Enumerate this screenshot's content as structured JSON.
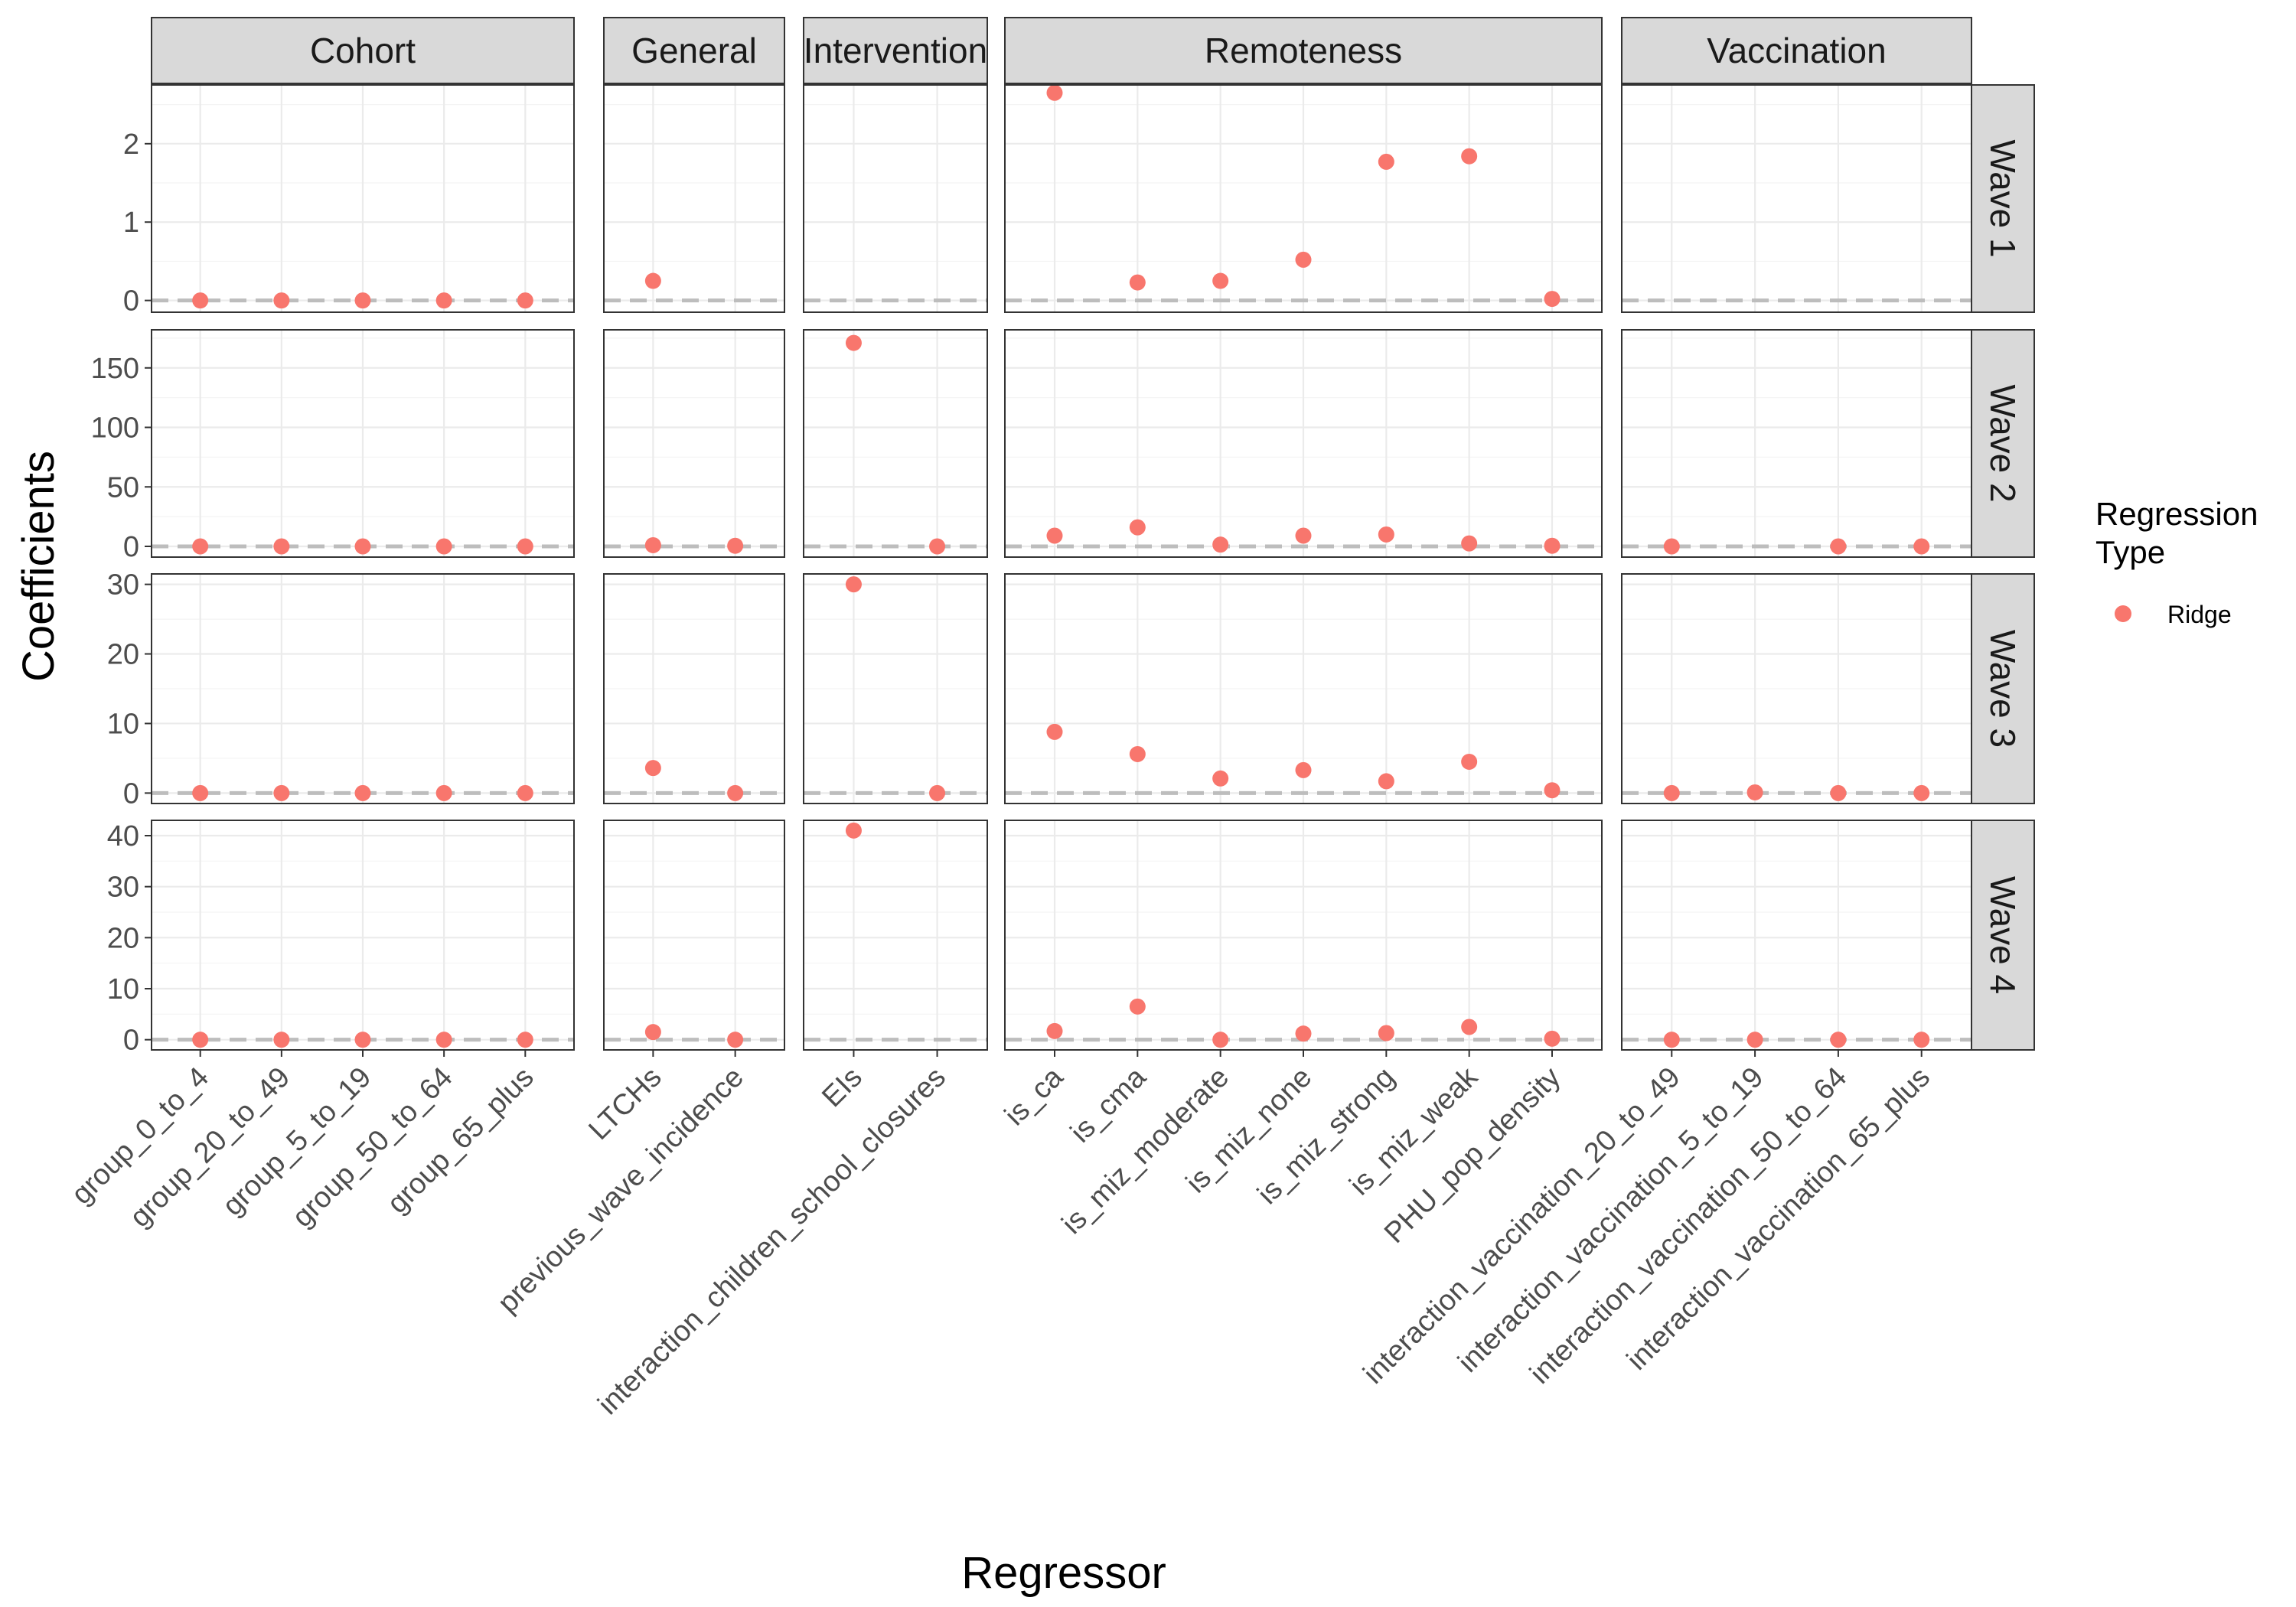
{
  "chart_data": {
    "type": "scatter",
    "xlabel": "Regressor",
    "ylabel": "Coefficients",
    "legend": {
      "title_lines": [
        "Regression",
        "Type"
      ],
      "entries": [
        {
          "name": "Ridge",
          "color": "#F8766D"
        }
      ],
      "placement": "right"
    },
    "reference_line": {
      "y": 0,
      "style": "dashed",
      "color": "#BDBDBD"
    },
    "grid": true,
    "facet_columns": [
      {
        "name": "Cohort",
        "regressors": [
          "group_0_to_4",
          "group_20_to_49",
          "group_5_to_19",
          "group_50_to_64",
          "group_65_plus"
        ]
      },
      {
        "name": "General",
        "regressors": [
          "LTCHs",
          "previous_wave_incidence"
        ]
      },
      {
        "name": "Intervention",
        "regressors": [
          "EIs",
          "interaction_children_school_closures"
        ]
      },
      {
        "name": "Remoteness",
        "regressors": [
          "is_ca",
          "is_cma",
          "is_miz_moderate",
          "is_miz_none",
          "is_miz_strong",
          "is_miz_weak",
          "PHU_pop_density"
        ]
      },
      {
        "name": "Vaccination",
        "regressors": [
          "interaction_vaccination_20_to_49",
          "interaction_vaccination_5_to_19",
          "interaction_vaccination_50_to_64",
          "interaction_vaccination_65_plus"
        ]
      }
    ],
    "facet_rows": [
      {
        "name": "Wave 1",
        "ylim": [
          -0.15,
          2.75
        ],
        "yticks": [
          0,
          1,
          2
        ]
      },
      {
        "name": "Wave 2",
        "ylim": [
          -9,
          182
        ],
        "yticks": [
          0,
          50,
          100,
          150
        ]
      },
      {
        "name": "Wave 3",
        "ylim": [
          -1.5,
          31.5
        ],
        "yticks": [
          0,
          10,
          20,
          30
        ]
      },
      {
        "name": "Wave 4",
        "ylim": [
          -2,
          43
        ],
        "yticks": [
          0,
          10,
          20,
          30,
          40
        ]
      }
    ],
    "series": [
      {
        "name": "Ridge",
        "color": "#F8766D",
        "points": [
          {
            "wave": "Wave 1",
            "regressor": "group_0_to_4",
            "y": 0
          },
          {
            "wave": "Wave 1",
            "regressor": "group_20_to_49",
            "y": 0
          },
          {
            "wave": "Wave 1",
            "regressor": "group_5_to_19",
            "y": 0
          },
          {
            "wave": "Wave 1",
            "regressor": "group_50_to_64",
            "y": 0
          },
          {
            "wave": "Wave 1",
            "regressor": "group_65_plus",
            "y": 0
          },
          {
            "wave": "Wave 1",
            "regressor": "LTCHs",
            "y": 0.25
          },
          {
            "wave": "Wave 1",
            "regressor": "is_ca",
            "y": 2.65
          },
          {
            "wave": "Wave 1",
            "regressor": "is_cma",
            "y": 0.23
          },
          {
            "wave": "Wave 1",
            "regressor": "is_miz_moderate",
            "y": 0.25
          },
          {
            "wave": "Wave 1",
            "regressor": "is_miz_none",
            "y": 0.52
          },
          {
            "wave": "Wave 1",
            "regressor": "is_miz_strong",
            "y": 1.77
          },
          {
            "wave": "Wave 1",
            "regressor": "is_miz_weak",
            "y": 1.84
          },
          {
            "wave": "Wave 1",
            "regressor": "PHU_pop_density",
            "y": 0.02
          },
          {
            "wave": "Wave 2",
            "regressor": "group_0_to_4",
            "y": 0
          },
          {
            "wave": "Wave 2",
            "regressor": "group_20_to_49",
            "y": 0
          },
          {
            "wave": "Wave 2",
            "regressor": "group_5_to_19",
            "y": 0
          },
          {
            "wave": "Wave 2",
            "regressor": "group_50_to_64",
            "y": 0
          },
          {
            "wave": "Wave 2",
            "regressor": "group_65_plus",
            "y": 0
          },
          {
            "wave": "Wave 2",
            "regressor": "LTCHs",
            "y": 1
          },
          {
            "wave": "Wave 2",
            "regressor": "previous_wave_incidence",
            "y": 0.5
          },
          {
            "wave": "Wave 2",
            "regressor": "EIs",
            "y": 171
          },
          {
            "wave": "Wave 2",
            "regressor": "interaction_children_school_closures",
            "y": 0
          },
          {
            "wave": "Wave 2",
            "regressor": "is_ca",
            "y": 9
          },
          {
            "wave": "Wave 2",
            "regressor": "is_cma",
            "y": 16
          },
          {
            "wave": "Wave 2",
            "regressor": "is_miz_moderate",
            "y": 1.5
          },
          {
            "wave": "Wave 2",
            "regressor": "is_miz_none",
            "y": 9
          },
          {
            "wave": "Wave 2",
            "regressor": "is_miz_strong",
            "y": 10
          },
          {
            "wave": "Wave 2",
            "regressor": "is_miz_weak",
            "y": 2.5
          },
          {
            "wave": "Wave 2",
            "regressor": "PHU_pop_density",
            "y": 0.5
          },
          {
            "wave": "Wave 2",
            "regressor": "interaction_vaccination_20_to_49",
            "y": 0
          },
          {
            "wave": "Wave 2",
            "regressor": "interaction_vaccination_50_to_64",
            "y": 0
          },
          {
            "wave": "Wave 2",
            "regressor": "interaction_vaccination_65_plus",
            "y": 0
          },
          {
            "wave": "Wave 3",
            "regressor": "group_0_to_4",
            "y": 0
          },
          {
            "wave": "Wave 3",
            "regressor": "group_20_to_49",
            "y": 0
          },
          {
            "wave": "Wave 3",
            "regressor": "group_5_to_19",
            "y": 0
          },
          {
            "wave": "Wave 3",
            "regressor": "group_50_to_64",
            "y": 0
          },
          {
            "wave": "Wave 3",
            "regressor": "group_65_plus",
            "y": 0
          },
          {
            "wave": "Wave 3",
            "regressor": "LTCHs",
            "y": 3.6
          },
          {
            "wave": "Wave 3",
            "regressor": "previous_wave_incidence",
            "y": 0
          },
          {
            "wave": "Wave 3",
            "regressor": "EIs",
            "y": 30
          },
          {
            "wave": "Wave 3",
            "regressor": "interaction_children_school_closures",
            "y": 0
          },
          {
            "wave": "Wave 3",
            "regressor": "is_ca",
            "y": 8.8
          },
          {
            "wave": "Wave 3",
            "regressor": "is_cma",
            "y": 5.6
          },
          {
            "wave": "Wave 3",
            "regressor": "is_miz_moderate",
            "y": 2.1
          },
          {
            "wave": "Wave 3",
            "regressor": "is_miz_none",
            "y": 3.3
          },
          {
            "wave": "Wave 3",
            "regressor": "is_miz_strong",
            "y": 1.7
          },
          {
            "wave": "Wave 3",
            "regressor": "is_miz_weak",
            "y": 4.5
          },
          {
            "wave": "Wave 3",
            "regressor": "PHU_pop_density",
            "y": 0.4
          },
          {
            "wave": "Wave 3",
            "regressor": "interaction_vaccination_20_to_49",
            "y": 0
          },
          {
            "wave": "Wave 3",
            "regressor": "interaction_vaccination_5_to_19",
            "y": 0.1
          },
          {
            "wave": "Wave 3",
            "regressor": "interaction_vaccination_50_to_64",
            "y": 0
          },
          {
            "wave": "Wave 3",
            "regressor": "interaction_vaccination_65_plus",
            "y": 0
          },
          {
            "wave": "Wave 4",
            "regressor": "group_0_to_4",
            "y": 0
          },
          {
            "wave": "Wave 4",
            "regressor": "group_20_to_49",
            "y": 0
          },
          {
            "wave": "Wave 4",
            "regressor": "group_5_to_19",
            "y": 0
          },
          {
            "wave": "Wave 4",
            "regressor": "group_50_to_64",
            "y": 0
          },
          {
            "wave": "Wave 4",
            "regressor": "group_65_plus",
            "y": 0
          },
          {
            "wave": "Wave 4",
            "regressor": "LTCHs",
            "y": 1.5
          },
          {
            "wave": "Wave 4",
            "regressor": "previous_wave_incidence",
            "y": 0
          },
          {
            "wave": "Wave 4",
            "regressor": "EIs",
            "y": 41
          },
          {
            "wave": "Wave 4",
            "regressor": "is_ca",
            "y": 1.7
          },
          {
            "wave": "Wave 4",
            "regressor": "is_cma",
            "y": 6.5
          },
          {
            "wave": "Wave 4",
            "regressor": "is_miz_moderate",
            "y": 0
          },
          {
            "wave": "Wave 4",
            "regressor": "is_miz_none",
            "y": 1.2
          },
          {
            "wave": "Wave 4",
            "regressor": "is_miz_strong",
            "y": 1.3
          },
          {
            "wave": "Wave 4",
            "regressor": "is_miz_weak",
            "y": 2.5
          },
          {
            "wave": "Wave 4",
            "regressor": "PHU_pop_density",
            "y": 0.2
          },
          {
            "wave": "Wave 4",
            "regressor": "interaction_vaccination_20_to_49",
            "y": 0
          },
          {
            "wave": "Wave 4",
            "regressor": "interaction_vaccination_5_to_19",
            "y": 0
          },
          {
            "wave": "Wave 4",
            "regressor": "interaction_vaccination_50_to_64",
            "y": 0
          },
          {
            "wave": "Wave 4",
            "regressor": "interaction_vaccination_65_plus",
            "y": 0
          }
        ]
      }
    ]
  }
}
